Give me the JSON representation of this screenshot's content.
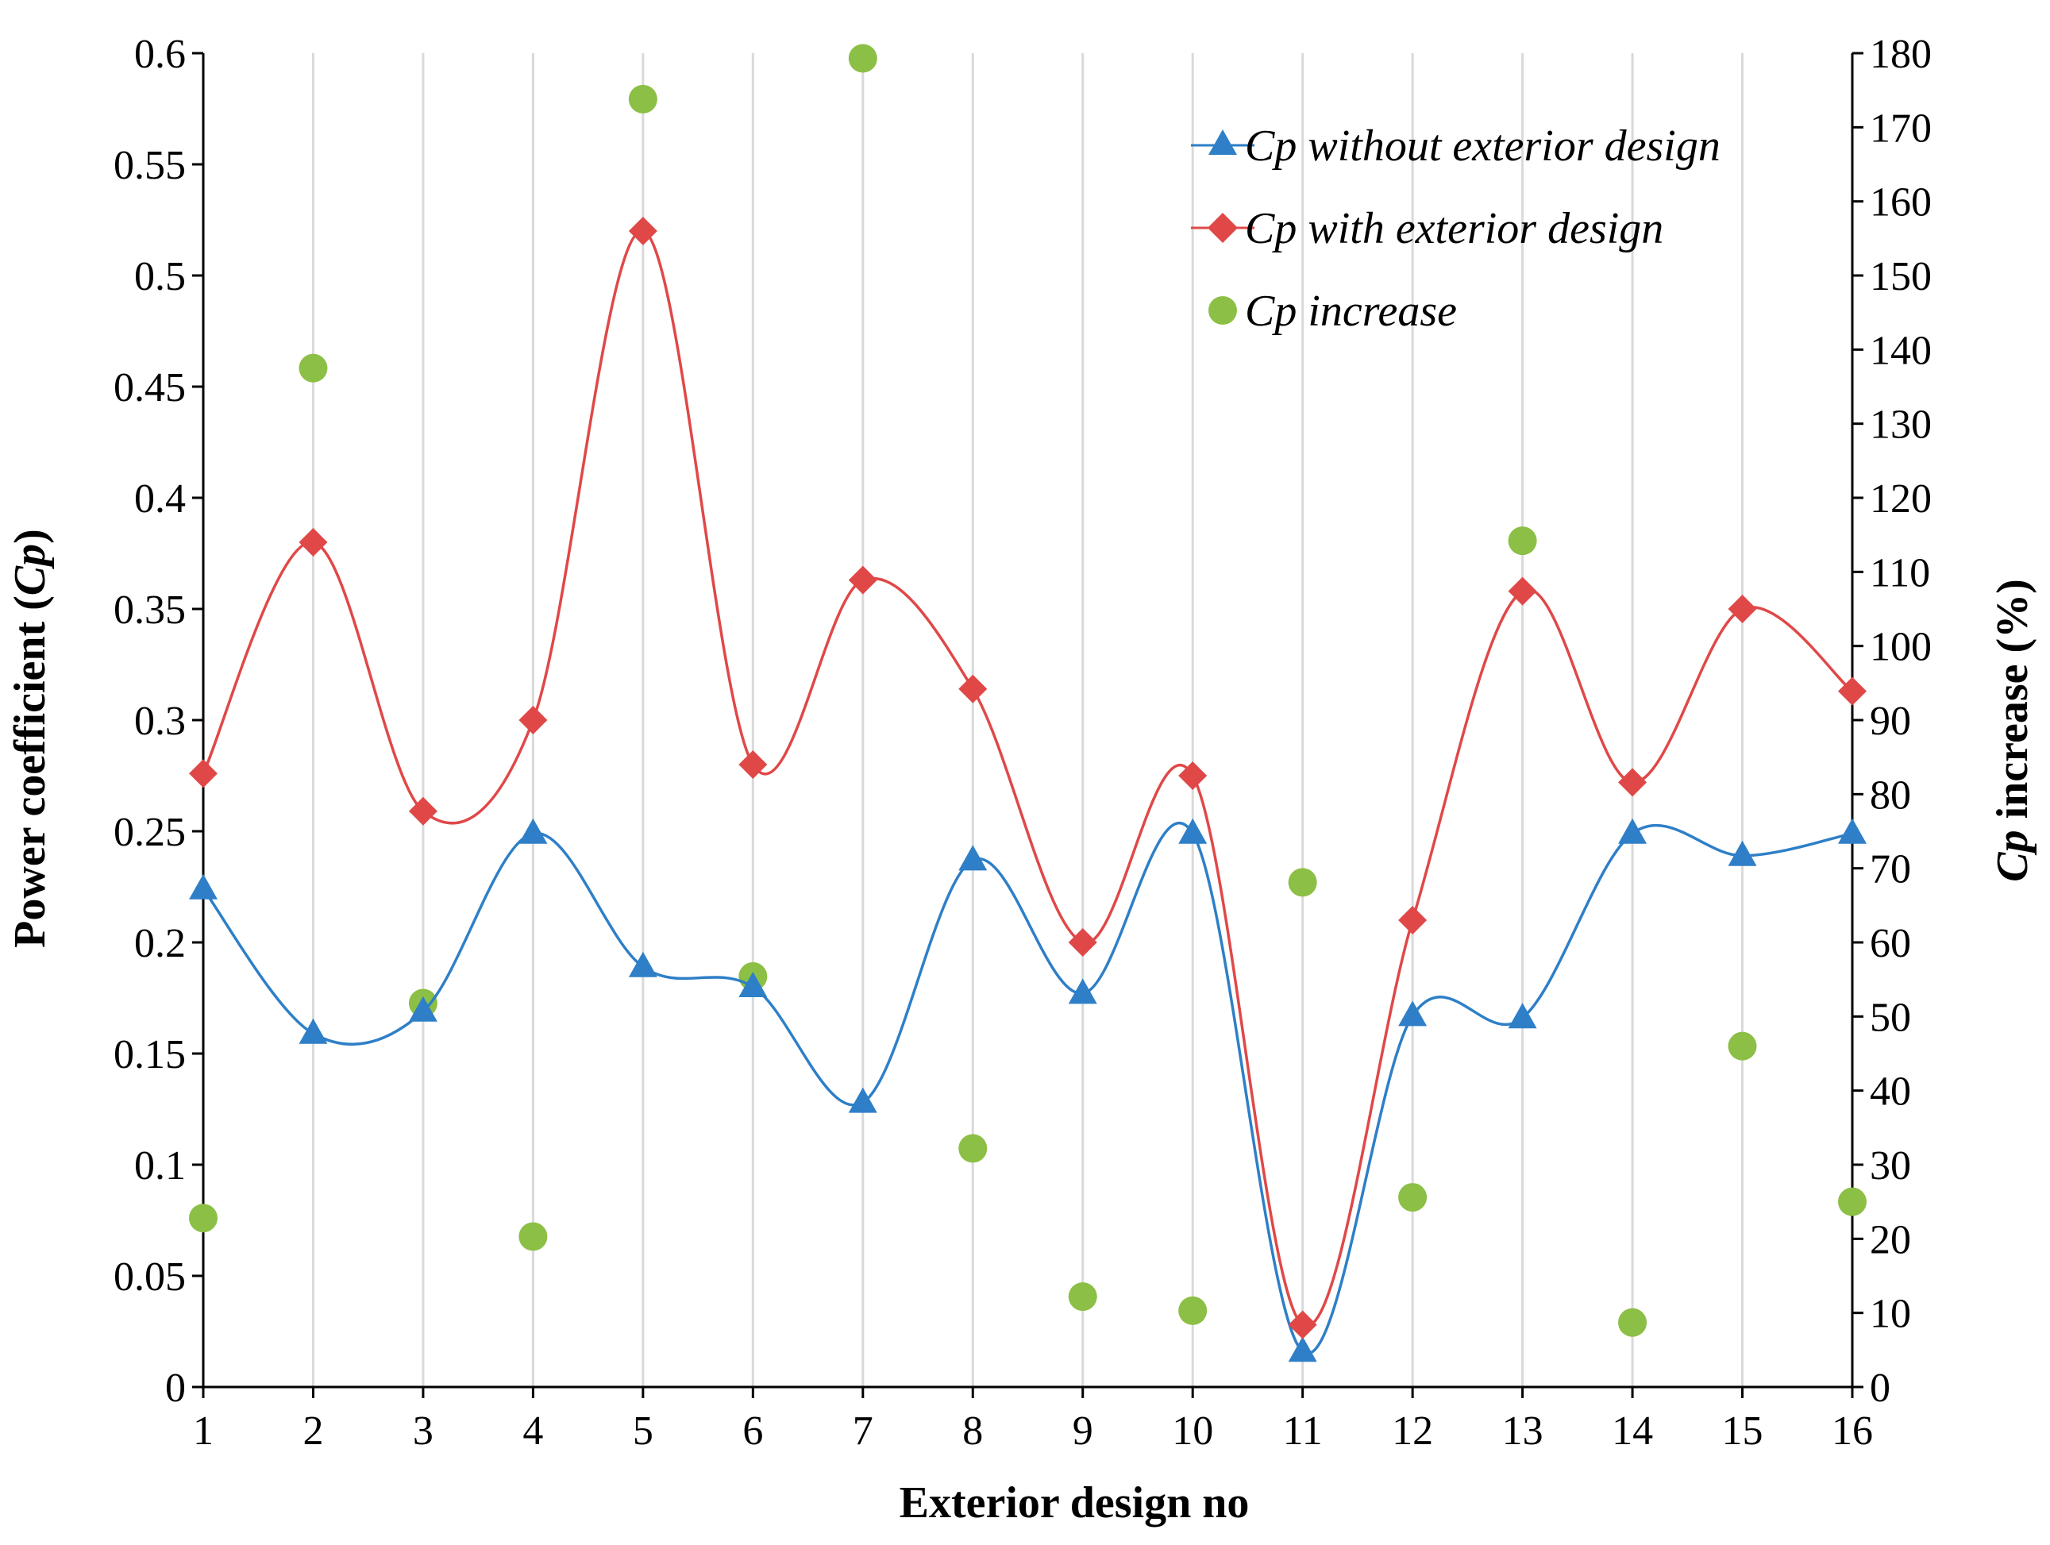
{
  "chart_data": {
    "type": "line",
    "title": "",
    "xlabel": "Exterior design no",
    "ylabel_parts": [
      "Power coefficient (",
      "Cp",
      ")"
    ],
    "y2label_parts": [
      "Cp",
      " increase (%)"
    ],
    "categories": [
      1,
      2,
      3,
      4,
      5,
      6,
      7,
      8,
      9,
      10,
      11,
      12,
      13,
      14,
      15,
      16
    ],
    "ylim": [
      0,
      0.6
    ],
    "y_ticks": [
      "0",
      "0.05",
      "0.1",
      "0.15",
      "0.2",
      "0.25",
      "0.3",
      "0.35",
      "0.4",
      "0.45",
      "0.5",
      "0.55",
      "0.6"
    ],
    "y2lim": [
      0,
      180
    ],
    "y2_ticks": [
      "0",
      "10",
      "20",
      "30",
      "40",
      "50",
      "60",
      "70",
      "80",
      "90",
      "100",
      "110",
      "120",
      "130",
      "140",
      "150",
      "160",
      "170",
      "180"
    ],
    "grid": "vertical",
    "legend_position": "top-right",
    "series": [
      {
        "name": "Cp without exterior design",
        "axis": "left",
        "style": "smooth-line",
        "marker": "triangle",
        "color": "#2e7fc7",
        "values": [
          0.224,
          0.159,
          0.169,
          0.249,
          0.189,
          0.18,
          0.128,
          0.237,
          0.177,
          0.249,
          0.016,
          0.167,
          0.166,
          0.249,
          0.239,
          0.249
        ]
      },
      {
        "name": "Cp with exterior design",
        "axis": "left",
        "style": "smooth-line",
        "marker": "diamond",
        "color": "#e04848",
        "values": [
          0.276,
          0.38,
          0.259,
          0.3,
          0.52,
          0.28,
          0.363,
          0.314,
          0.2,
          0.275,
          0.028,
          0.21,
          0.358,
          0.272,
          0.35,
          0.313
        ]
      },
      {
        "name": "Cp increase",
        "axis": "right",
        "style": "scatter",
        "marker": "circle",
        "color": "#8cbf45",
        "values": [
          22.8,
          137.5,
          51.8,
          20.3,
          173.8,
          55.4,
          179.3,
          32.2,
          12.2,
          10.3,
          68.1,
          25.6,
          114.2,
          8.7,
          46.0,
          25.0
        ]
      }
    ]
  }
}
